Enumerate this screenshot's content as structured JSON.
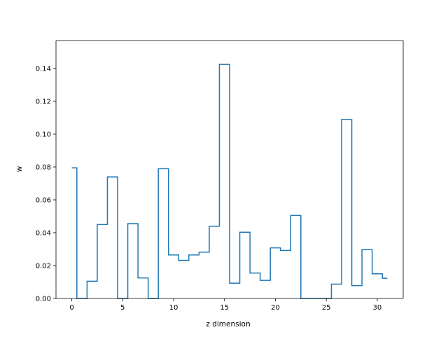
{
  "chart_data": {
    "type": "line",
    "drawstyle": "steps-mid",
    "title": "",
    "xlabel": "z dimension",
    "ylabel": "w",
    "xlim": [
      -1.55,
      32.55
    ],
    "ylim": [
      0.0,
      0.157
    ],
    "x_ticks": [
      0,
      5,
      10,
      15,
      20,
      25,
      30
    ],
    "x_tick_labels": [
      "0",
      "5",
      "10",
      "15",
      "20",
      "25",
      "30"
    ],
    "y_ticks": [
      0.0,
      0.02,
      0.04,
      0.06,
      0.08,
      0.1,
      0.12,
      0.14
    ],
    "y_tick_labels": [
      "0.00",
      "0.02",
      "0.04",
      "0.06",
      "0.08",
      "0.10",
      "0.12",
      "0.14"
    ],
    "grid": false,
    "legend": "none",
    "series": [
      {
        "color": "#1f77b4",
        "x": [
          0,
          1,
          2,
          3,
          4,
          5,
          6,
          7,
          8,
          9,
          10,
          11,
          12,
          13,
          14,
          15,
          16,
          17,
          18,
          19,
          20,
          21,
          22,
          23,
          24,
          25,
          26,
          27,
          28,
          29,
          30,
          31
        ],
        "values": [
          0.0795,
          0.0,
          0.0105,
          0.045,
          0.074,
          0.0,
          0.0455,
          0.0125,
          0.0,
          0.079,
          0.0265,
          0.0232,
          0.0265,
          0.0282,
          0.044,
          0.1425,
          0.0093,
          0.0403,
          0.0155,
          0.011,
          0.0308,
          0.0292,
          0.0505,
          0.0,
          0.0,
          0.0,
          0.0087,
          0.109,
          0.0078,
          0.0298,
          0.015,
          0.0123
        ]
      }
    ]
  }
}
